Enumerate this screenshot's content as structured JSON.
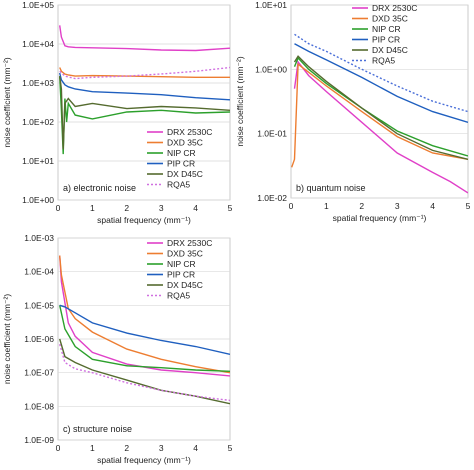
{
  "chart_data": [
    {
      "type": "line",
      "panel_label": "a) electronic noise",
      "xlabel": "spatial frequency (mm⁻¹)",
      "ylabel": "noise coefficient (mm⁻²)",
      "yscale": "log",
      "xlim": [
        0,
        5
      ],
      "ylim": [
        1,
        100000
      ],
      "xticks": [
        "0",
        "1",
        "2",
        "3",
        "4",
        "5"
      ],
      "yticks": [
        "1.0E+00",
        "1.0E+01",
        "1.0E+02",
        "1.0E+03",
        "1.0E+04",
        "1.0E+05"
      ],
      "legend_position": "lower-right",
      "series": [
        {
          "name": "DRX 2530C",
          "color": "#e040c8",
          "dash": "solid",
          "x": [
            0.05,
            0.1,
            0.2,
            0.3,
            0.5,
            1,
            2,
            3,
            4,
            5
          ],
          "values": [
            30000,
            15000,
            9000,
            8500,
            8200,
            8000,
            7600,
            7000,
            6800,
            7800
          ]
        },
        {
          "name": "DXD 35C",
          "color": "#ed7d31",
          "dash": "solid",
          "x": [
            0.05,
            0.1,
            0.2,
            0.3,
            0.5,
            1,
            2,
            3,
            4,
            5
          ],
          "values": [
            2500,
            2000,
            1700,
            1600,
            1500,
            1550,
            1500,
            1450,
            1400,
            1400
          ]
        },
        {
          "name": "NIP CR",
          "color": "#2ca02c",
          "dash": "solid",
          "x": [
            0.05,
            0.1,
            0.15,
            0.2,
            0.25,
            0.3,
            0.5,
            1,
            2,
            3,
            4,
            5
          ],
          "values": [
            1500,
            200,
            15,
            400,
            100,
            300,
            150,
            120,
            180,
            200,
            170,
            180
          ]
        },
        {
          "name": "PIP CR",
          "color": "#1f5fbf",
          "dash": "solid",
          "x": [
            0.05,
            0.1,
            0.2,
            0.3,
            0.5,
            1,
            2,
            3,
            4,
            5
          ],
          "values": [
            1800,
            1200,
            900,
            800,
            700,
            600,
            550,
            500,
            420,
            370
          ]
        },
        {
          "name": "DX D45C",
          "color": "#556b2f",
          "dash": "solid",
          "x": [
            0.05,
            0.1,
            0.15,
            0.2,
            0.3,
            0.5,
            1,
            2,
            3,
            4,
            5
          ],
          "values": [
            1500,
            700,
            20,
            300,
            400,
            250,
            300,
            220,
            250,
            230,
            200
          ]
        },
        {
          "name": "RQA5",
          "color": "#d070e0",
          "dash": "dot",
          "x": [
            0.05,
            0.2,
            0.5,
            1,
            2,
            3,
            4,
            5
          ],
          "values": [
            2000,
            1500,
            1300,
            1400,
            1500,
            1700,
            2000,
            2500
          ]
        }
      ]
    },
    {
      "type": "line",
      "panel_label": "b) quantum noise",
      "xlabel": "spatial frequency (mm⁻¹)",
      "ylabel": "noise coefficient (mm⁻²)",
      "yscale": "log",
      "xlim": [
        0,
        5
      ],
      "ylim": [
        0.01,
        10
      ],
      "xticks": [
        "0",
        "1",
        "2",
        "3",
        "4",
        "5"
      ],
      "yticks": [
        "1.0E-02",
        "1.0E-01",
        "1.0E+00",
        "1.0E+01"
      ],
      "legend_position": "top-right",
      "series": [
        {
          "name": "DRX 2530C",
          "color": "#e040c8",
          "dash": "solid",
          "x": [
            0.1,
            0.2,
            0.5,
            1,
            2,
            3,
            4,
            4.5,
            5
          ],
          "values": [
            0.5,
            1.3,
            0.8,
            0.45,
            0.15,
            0.05,
            0.025,
            0.018,
            0.012
          ]
        },
        {
          "name": "DXD 35C",
          "color": "#ed7d31",
          "dash": "solid",
          "x": [
            0.02,
            0.1,
            0.2,
            0.5,
            1,
            2,
            3,
            4,
            5
          ],
          "values": [
            0.03,
            0.04,
            1.2,
            0.9,
            0.55,
            0.22,
            0.09,
            0.05,
            0.04
          ]
        },
        {
          "name": "NIP CR",
          "color": "#2ca02c",
          "dash": "solid",
          "x": [
            0.1,
            0.2,
            0.5,
            1,
            2,
            3,
            4,
            5
          ],
          "values": [
            1.1,
            1.5,
            1.0,
            0.6,
            0.25,
            0.11,
            0.065,
            0.045
          ]
        },
        {
          "name": "PIP CR",
          "color": "#1f5fbf",
          "dash": "solid",
          "x": [
            0.1,
            0.5,
            1,
            2,
            3,
            4,
            5
          ],
          "values": [
            2.5,
            1.9,
            1.4,
            0.75,
            0.38,
            0.22,
            0.15
          ]
        },
        {
          "name": "DX D45C",
          "color": "#556b2f",
          "dash": "solid",
          "x": [
            0.1,
            0.2,
            0.5,
            1,
            2,
            3,
            4,
            5
          ],
          "values": [
            1.3,
            1.6,
            1.1,
            0.65,
            0.25,
            0.1,
            0.055,
            0.04
          ]
        },
        {
          "name": "RQA5",
          "color": "#4a6fd8",
          "dash": "dot",
          "x": [
            0.1,
            0.5,
            1,
            2,
            3,
            4,
            5
          ],
          "values": [
            3.5,
            2.5,
            1.9,
            1.0,
            0.55,
            0.32,
            0.22
          ]
        }
      ]
    },
    {
      "type": "line",
      "panel_label": "c) structure noise",
      "xlabel": "spatial frequency (mm⁻¹)",
      "ylabel": "noise coefficient (mm⁻²)",
      "yscale": "log",
      "xlim": [
        0,
        5
      ],
      "ylim": [
        1e-09,
        0.001
      ],
      "xticks": [
        "0",
        "1",
        "2",
        "3",
        "4",
        "5"
      ],
      "yticks": [
        "1.0E-09",
        "1.0E-08",
        "1.0E-07",
        "1.0E-06",
        "1.0E-05",
        "1.0E-04",
        "1.0E-03"
      ],
      "legend_position": "top-right",
      "series": [
        {
          "name": "DRX 2530C",
          "color": "#e040c8",
          "dash": "solid",
          "x": [
            0.05,
            0.1,
            0.3,
            0.5,
            1,
            2,
            3,
            4,
            5
          ],
          "values": [
            0.0003,
            5e-05,
            3e-06,
            1.2e-06,
            4e-07,
            1.8e-07,
            1.2e-07,
            1e-07,
            8e-08
          ]
        },
        {
          "name": "DXD 35C",
          "color": "#ed7d31",
          "dash": "solid",
          "x": [
            0.05,
            0.1,
            0.3,
            0.5,
            1,
            2,
            3,
            4,
            5
          ],
          "values": [
            0.0003,
            8e-05,
            8e-06,
            4e-06,
            1.6e-06,
            5e-07,
            2.5e-07,
            1.5e-07,
            1e-07
          ]
        },
        {
          "name": "NIP CR",
          "color": "#2ca02c",
          "dash": "solid",
          "x": [
            0.05,
            0.2,
            0.5,
            1,
            2,
            3,
            4,
            5
          ],
          "values": [
            1e-05,
            2e-06,
            6e-07,
            2.5e-07,
            1.6e-07,
            1.4e-07,
            1.2e-07,
            1.1e-07
          ]
        },
        {
          "name": "PIP CR",
          "color": "#1f5fbf",
          "dash": "solid",
          "x": [
            0.05,
            0.2,
            0.5,
            1,
            2,
            3,
            4,
            5
          ],
          "values": [
            1e-05,
            9e-06,
            6e-06,
            3e-06,
            1.5e-06,
            9e-07,
            6e-07,
            3.5e-07
          ]
        },
        {
          "name": "DX D45C",
          "color": "#556b2f",
          "dash": "solid",
          "x": [
            0.05,
            0.2,
            0.5,
            1,
            2,
            3,
            4,
            5
          ],
          "values": [
            1e-06,
            3e-07,
            2e-07,
            1.2e-07,
            6e-08,
            3e-08,
            2e-08,
            1.2e-08
          ]
        },
        {
          "name": "RQA5",
          "color": "#d070e0",
          "dash": "dot",
          "x": [
            0.05,
            0.2,
            0.5,
            1,
            2,
            3,
            4,
            5
          ],
          "values": [
            7e-07,
            2e-07,
            1.3e-07,
            1e-07,
            5e-08,
            3e-08,
            2e-08,
            1.5e-08
          ]
        }
      ]
    }
  ]
}
